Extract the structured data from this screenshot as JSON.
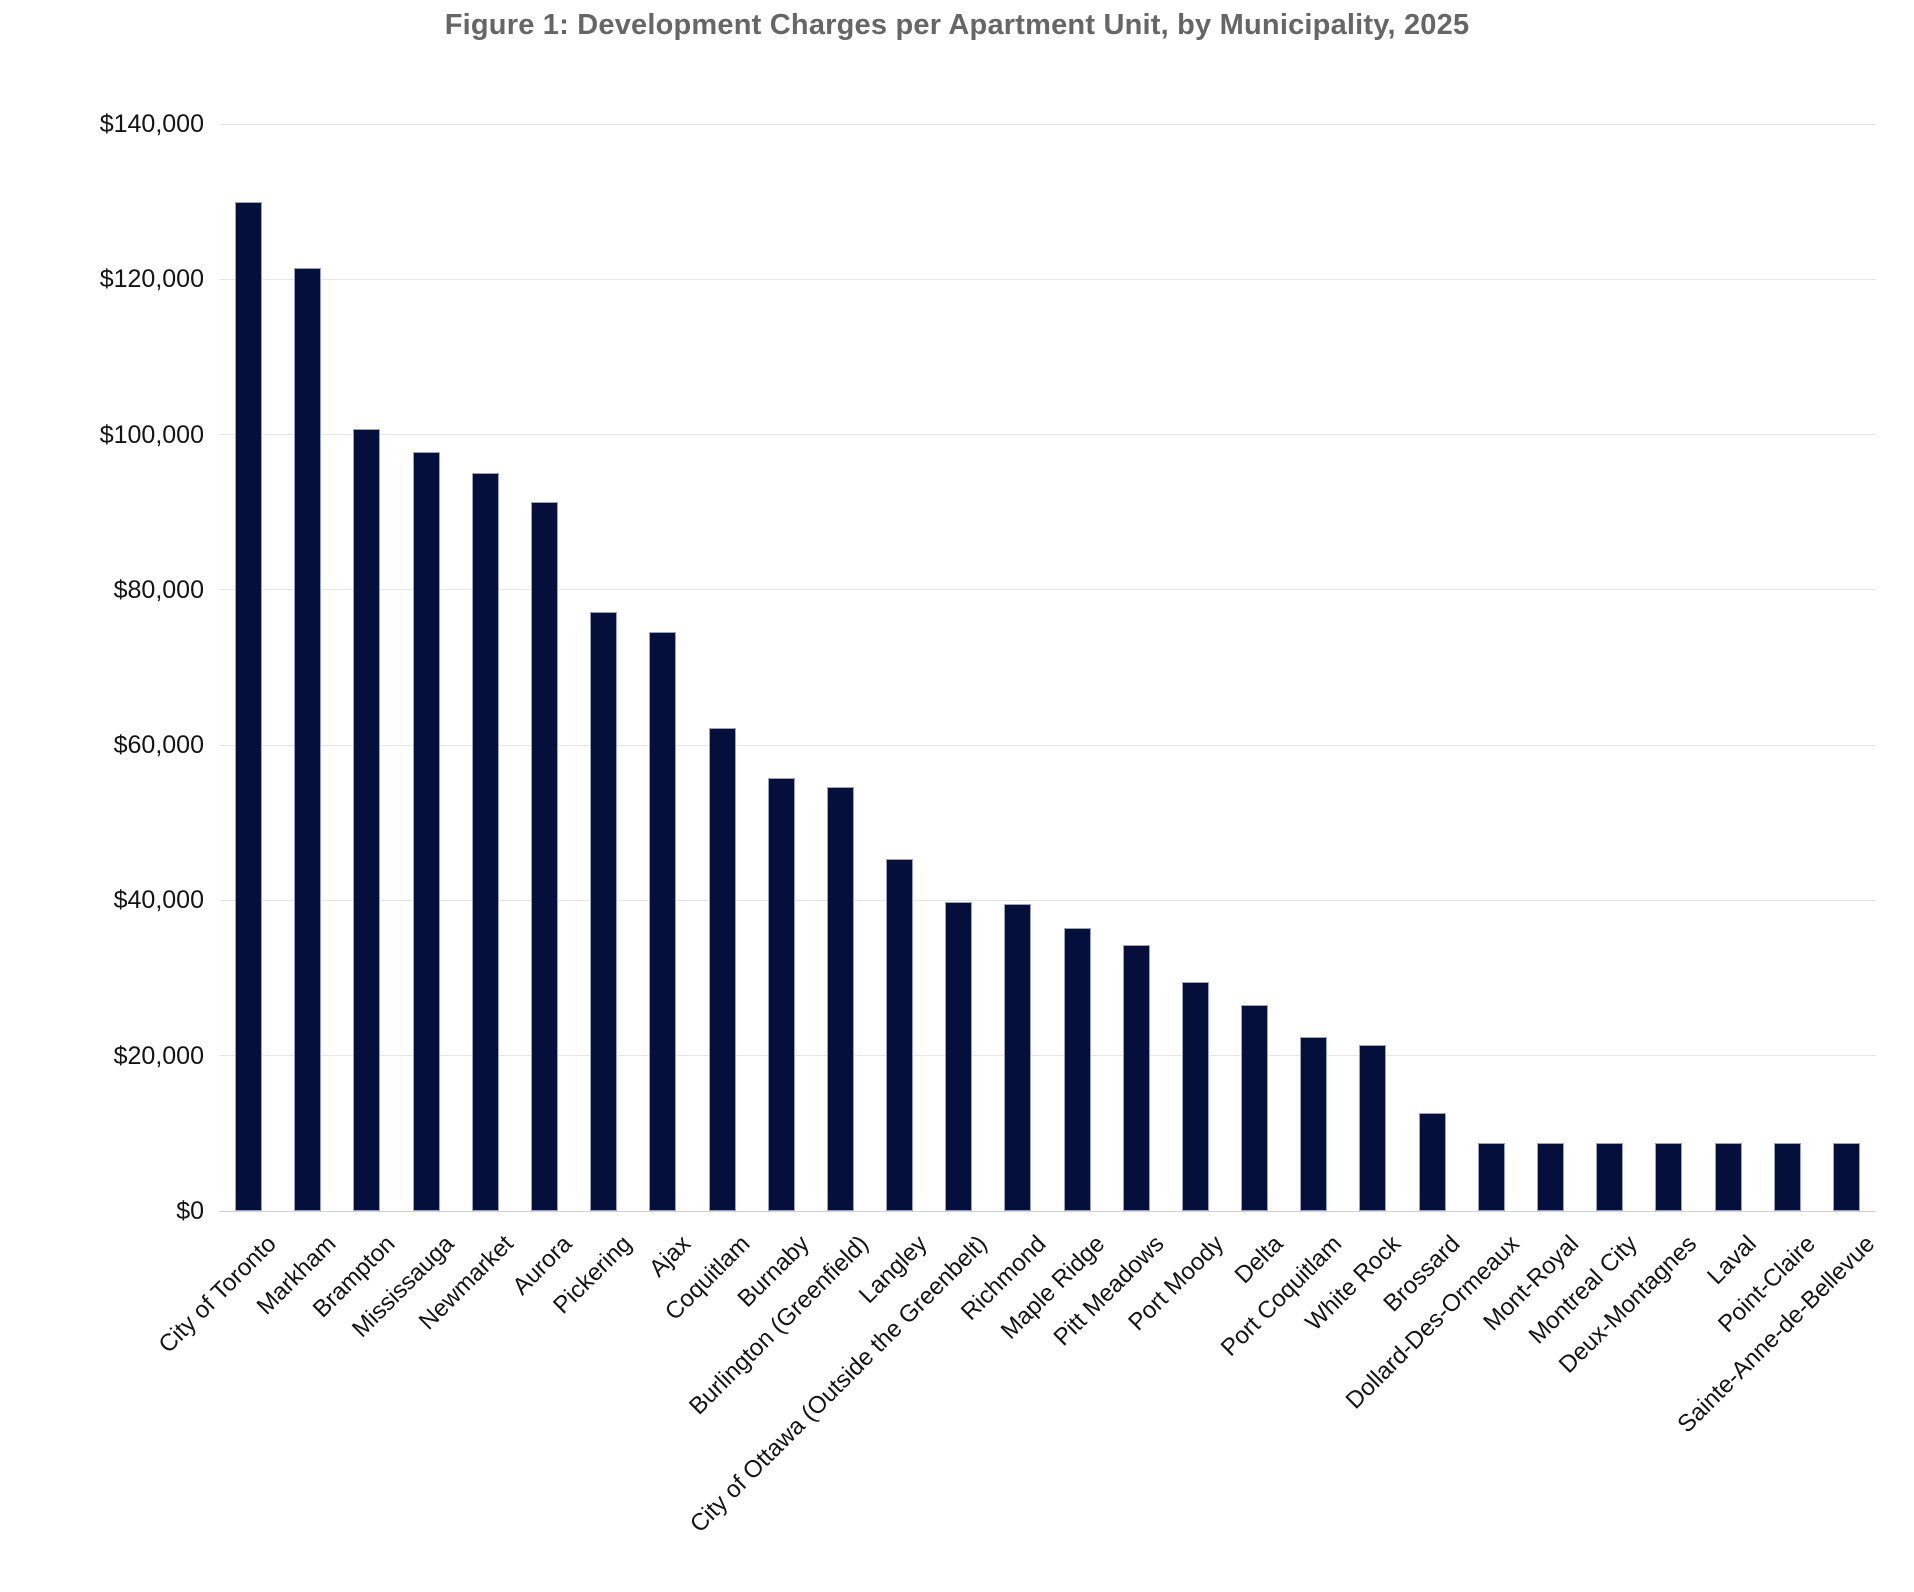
{
  "chart_data": {
    "type": "bar",
    "title": "Figure 1: Development Charges per Apartment Unit, by Municipality, 2025",
    "categories": [
      "City of Toronto",
      "Markham",
      "Brampton",
      "Mississauga",
      "Newmarket",
      "Aurora",
      "Pickering",
      "Ajax",
      "Coquitlam",
      "Burnaby",
      "Burlington (Greenfield)",
      "Langley",
      "City of Ottawa (Outside the Greenbelt)",
      "Richmond",
      "Maple Ridge",
      "Pitt Meadows",
      "Port Moody",
      "Delta",
      "Port Coquitlam",
      "White Rock",
      "Brossard",
      "Dollard-Des-Ormeaux",
      "Mont-Royal",
      "Montreal City",
      "Deux-Montagnes",
      "Laval",
      "Point-Claire",
      "Sainte-Anne-de-Bellevue"
    ],
    "values": [
      130000,
      121400,
      100700,
      97700,
      95000,
      91300,
      77100,
      74600,
      62200,
      55800,
      54600,
      45300,
      39800,
      39500,
      36400,
      34200,
      29500,
      26500,
      22400,
      21400,
      12600,
      8700,
      8700,
      8700,
      8700,
      8700,
      8700,
      8700
    ],
    "xlabel": "",
    "ylabel": "",
    "ylim": [
      0,
      140000
    ],
    "ytick_step": 20000,
    "ytick_labels": [
      "$0",
      "$20,000",
      "$40,000",
      "$60,000",
      "$80,000",
      "$100,000",
      "$120,000",
      "$140,000"
    ],
    "grid": true,
    "legend": "none",
    "colors": {
      "bar_fill": "#050f3c",
      "bar_stroke": "#9ba3c2",
      "title_text": "#666666",
      "axis_text": "#141414",
      "gridline": "#e6e6e6",
      "baseline": "#d2d2d2",
      "background": "#ffffff"
    }
  }
}
